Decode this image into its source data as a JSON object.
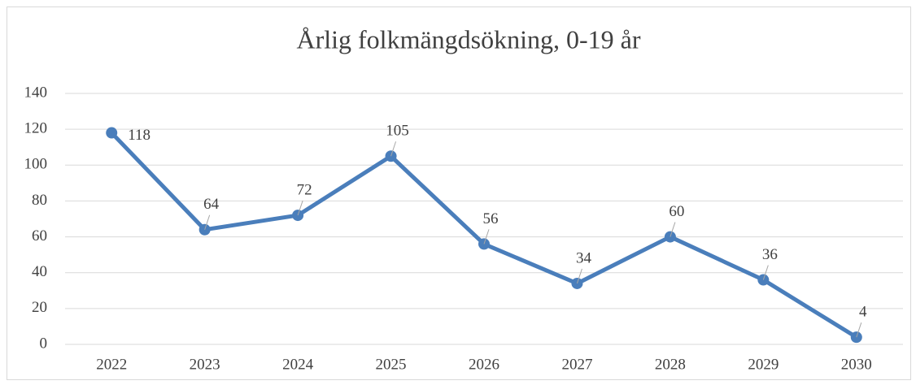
{
  "chart_data": {
    "type": "line",
    "title": "Årlig folkmängdsökning, 0-19 år",
    "categories": [
      "2022",
      "2023",
      "2024",
      "2025",
      "2026",
      "2027",
      "2028",
      "2029",
      "2030"
    ],
    "values": [
      118,
      64,
      72,
      105,
      56,
      34,
      60,
      36,
      4
    ],
    "color": "#4a7ebb",
    "ylim": [
      0,
      140
    ],
    "yticks": [
      0,
      20,
      40,
      60,
      80,
      100,
      120,
      140
    ],
    "grid": true
  }
}
